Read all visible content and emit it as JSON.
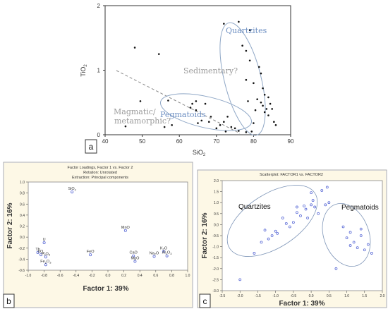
{
  "colors": {
    "ellipse_blue": "#8fa7c6",
    "annotation_blue": "#6d8fc2",
    "annotation_gray": "#9a9a9a",
    "plot_bg_bc": "#fdf8e6",
    "point_blue": "#5a6ad6"
  },
  "panels": {
    "a": {
      "tag": "a"
    },
    "b": {
      "tag": "b"
    },
    "c": {
      "tag": "c"
    }
  },
  "chart_data": [
    {
      "id": "a",
      "type": "scatter",
      "xlabel": "SiO2",
      "ylabel": "TiO2",
      "xlim": [
        40,
        90
      ],
      "ylim": [
        0,
        2
      ],
      "xticks": [
        "40",
        "50",
        "60",
        "70",
        "80",
        "90"
      ],
      "yticks": [
        "0",
        "1",
        "2"
      ],
      "grid": false,
      "annotations": [
        "Quartzites",
        "Sedimentary?",
        "Pegmatoids",
        "Magmatic/",
        "metamorphic?"
      ],
      "points": [
        [
          45.5,
          0.13
        ],
        [
          48,
          1.35
        ],
        [
          49.5,
          0.52
        ],
        [
          54.5,
          1.25
        ],
        [
          56,
          0.12
        ],
        [
          57,
          0.53
        ],
        [
          58,
          0.15
        ],
        [
          63,
          0.42
        ],
        [
          63.5,
          0.48
        ],
        [
          64.5,
          0.52
        ],
        [
          64.5,
          0.38
        ],
        [
          65,
          0.18
        ],
        [
          66,
          0.22
        ],
        [
          67,
          0.48
        ],
        [
          68,
          0.2
        ],
        [
          68.5,
          0.28
        ],
        [
          70,
          0.1
        ],
        [
          71,
          0.15
        ],
        [
          72,
          0.2
        ],
        [
          72.5,
          0.05
        ],
        [
          73,
          0.28
        ],
        [
          74,
          0.12
        ],
        [
          75,
          0.1
        ],
        [
          76,
          0.06
        ],
        [
          78,
          0.04
        ],
        [
          72,
          1.72
        ],
        [
          76,
          1.75
        ],
        [
          77,
          1.38
        ],
        [
          78,
          1.3
        ],
        [
          78,
          0.85
        ],
        [
          78.5,
          0.52
        ],
        [
          79,
          1.62
        ],
        [
          79,
          1.15
        ],
        [
          80,
          0.8
        ],
        [
          80.5,
          0.38
        ],
        [
          81,
          0.55
        ],
        [
          81.5,
          1.05
        ],
        [
          82,
          0.5
        ],
        [
          82,
          0.95
        ],
        [
          82.5,
          0.72
        ],
        [
          82.5,
          0.45
        ],
        [
          83,
          0.35
        ],
        [
          83,
          0.62
        ],
        [
          83.5,
          0.4
        ],
        [
          84,
          0.3
        ],
        [
          84,
          0.58
        ],
        [
          84.5,
          0.48
        ],
        [
          85,
          0.4
        ],
        [
          85.5,
          0.2
        ],
        [
          86,
          0.15
        ],
        [
          79.5,
          0.05
        ],
        [
          80,
          0.18
        ]
      ]
    },
    {
      "id": "b",
      "type": "scatter",
      "title": [
        "Factor Loadings, Factor 1 vs. Factor 2",
        "Rotation: Unrotated",
        "Extraction: Principal components"
      ],
      "xlabel": "Factor 1: 39%",
      "ylabel": "Factor 2: 16%",
      "xlim": [
        -1.0,
        1.0
      ],
      "ylim": [
        -0.6,
        1.0
      ],
      "xticks": [
        "-1.0",
        "-0.8",
        "-0.6",
        "-0.4",
        "-0.2",
        "0.0",
        "0.2",
        "0.4",
        "0.6",
        "0.8",
        "1.0"
      ],
      "yticks": [
        "1.0",
        "0.8",
        "0.6",
        "0.4",
        "0.2",
        "0.0",
        "-0.2",
        "-0.4",
        "-0.6"
      ],
      "points": [
        {
          "label": "SiO2",
          "x": -0.45,
          "y": 0.82
        },
        {
          "label": "MnO",
          "x": 0.22,
          "y": 0.12
        },
        {
          "label": "U",
          "x": -0.8,
          "y": -0.1
        },
        {
          "label": "Th",
          "x": -0.88,
          "y": -0.28
        },
        {
          "label": "TiO2",
          "x": -0.84,
          "y": -0.32
        },
        {
          "label": "P2O5",
          "x": -0.78,
          "y": -0.36
        },
        {
          "label": "Fe2O3",
          "x": -0.78,
          "y": -0.5
        },
        {
          "label": "FeO",
          "x": -0.22,
          "y": -0.32
        },
        {
          "label": "CaO",
          "x": 0.32,
          "y": -0.34
        },
        {
          "label": "MgO",
          "x": 0.34,
          "y": -0.44
        },
        {
          "label": "Na2O",
          "x": 0.58,
          "y": -0.35
        },
        {
          "label": "K2O",
          "x": 0.7,
          "y": -0.26
        },
        {
          "label": "Al2O3",
          "x": 0.74,
          "y": -0.34
        }
      ]
    },
    {
      "id": "c",
      "type": "scatter",
      "title": "Scatterplot: FACTOR1 vs. FACTOR2",
      "xlabel": "Factor 1: 39%",
      "ylabel": "Factor 2: 16%",
      "xlim": [
        -2.5,
        2.0
      ],
      "ylim": [
        -3.0,
        2.0
      ],
      "xticks": [
        "-2.5",
        "-2.0",
        "-1.5",
        "-1.0",
        "-0.5",
        "0.0",
        "0.5",
        "1.0",
        "1.5",
        "2.0"
      ],
      "yticks": [
        "2.0",
        "1.5",
        "1.0",
        "0.5",
        "0.0",
        "-0.5",
        "-1.0",
        "-1.5",
        "-2.0",
        "-2.5",
        "-3.0"
      ],
      "annotations": [
        "Quartzites",
        "Pegmatoids"
      ],
      "points": [
        [
          -2.0,
          -2.5
        ],
        [
          -1.6,
          -1.3
        ],
        [
          -1.4,
          -0.8
        ],
        [
          -1.3,
          -0.25
        ],
        [
          -1.2,
          -0.65
        ],
        [
          -1.1,
          -0.5
        ],
        [
          -1.0,
          -0.3
        ],
        [
          -0.95,
          -0.4
        ],
        [
          -0.8,
          0.3
        ],
        [
          -0.7,
          0.05
        ],
        [
          -0.6,
          -0.1
        ],
        [
          -0.5,
          0.1
        ],
        [
          -0.4,
          0.55
        ],
        [
          -0.4,
          0.8
        ],
        [
          -0.3,
          0.4
        ],
        [
          -0.2,
          0.85
        ],
        [
          -0.15,
          0.7
        ],
        [
          -0.1,
          0.3
        ],
        [
          0.0,
          1.45
        ],
        [
          0.0,
          0.9
        ],
        [
          0.05,
          1.1
        ],
        [
          0.1,
          0.8
        ],
        [
          0.2,
          0.5
        ],
        [
          0.3,
          1.55
        ],
        [
          0.4,
          0.9
        ],
        [
          0.45,
          1.7
        ],
        [
          0.5,
          1.0
        ],
        [
          0.7,
          -2.0
        ],
        [
          0.9,
          -0.1
        ],
        [
          1.0,
          -0.6
        ],
        [
          1.1,
          -0.35
        ],
        [
          1.1,
          -0.95
        ],
        [
          1.2,
          -0.8
        ],
        [
          1.3,
          -1.05
        ],
        [
          1.4,
          -0.2
        ],
        [
          1.4,
          -0.5
        ],
        [
          1.5,
          -1.15
        ],
        [
          1.6,
          -0.9
        ],
        [
          1.7,
          -1.3
        ]
      ]
    }
  ]
}
